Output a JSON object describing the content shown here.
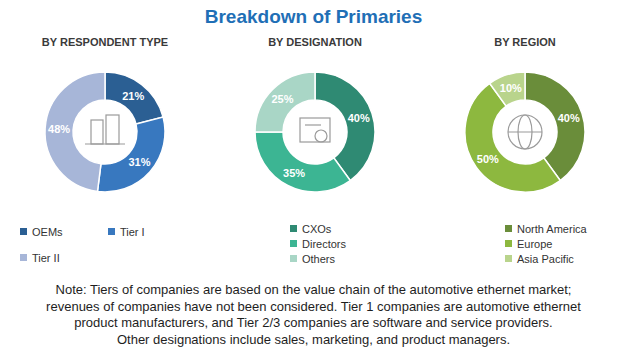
{
  "title": "Breakdown of Primaries",
  "chart_data": [
    {
      "type": "pie",
      "title": "BY RESPONDENT TYPE",
      "categories": [
        "OEMs",
        "Tier I",
        "Tier II"
      ],
      "values": [
        21,
        31,
        48
      ],
      "value_labels": [
        "21%",
        "31%",
        "48%"
      ],
      "colors": [
        "#2b5f93",
        "#3878bf",
        "#a7b6d8"
      ],
      "data_labels": true
    },
    {
      "type": "pie",
      "title": "BY DESIGNATION",
      "categories": [
        "CXOs",
        "Directors",
        "Others"
      ],
      "values": [
        40,
        35,
        25
      ],
      "value_labels": [
        "40%",
        "35%",
        "25%"
      ],
      "colors": [
        "#2f8a73",
        "#3cb593",
        "#a9d6c6"
      ],
      "data_labels": true
    },
    {
      "type": "pie",
      "title": "BY REGION",
      "categories": [
        "North America",
        "Europe",
        "Asia Pacific"
      ],
      "values": [
        40,
        50,
        10
      ],
      "value_labels": [
        "40%",
        "50%",
        "10%"
      ],
      "colors": [
        "#6a8d3a",
        "#8db83f",
        "#b9d48c"
      ],
      "data_labels": true
    }
  ],
  "note": [
    "Note: Tiers of companies are based on the value chain of the automotive ethernet market;",
    "revenues of companies have not been considered. Tier 1 companies are automotive ethernet",
    "product manufacturers, and Tier 2/3 companies are software and service providers.",
    "Other designations include sales, marketing, and product managers."
  ]
}
